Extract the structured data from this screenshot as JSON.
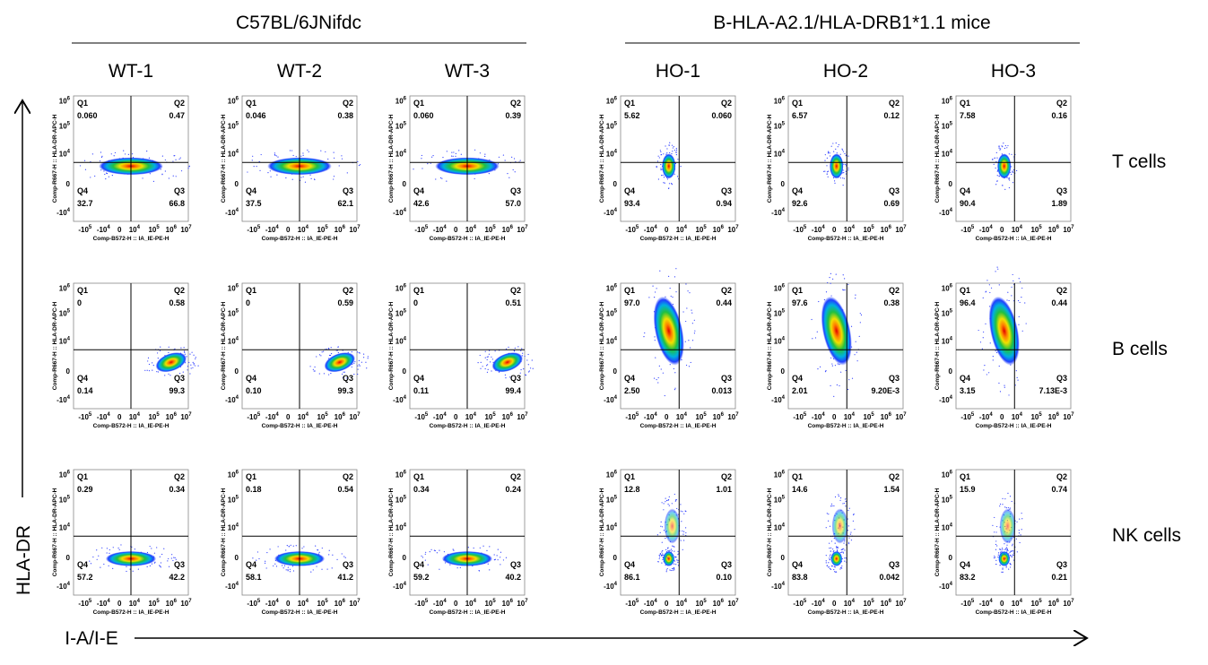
{
  "groups": [
    {
      "label": "C57BL/6JNifdc"
    },
    {
      "label": "B-HLA-A2.1/HLA-DRB1*1.1 mice"
    }
  ],
  "columns": [
    "WT-1",
    "WT-2",
    "WT-3",
    "HO-1",
    "HO-2",
    "HO-3"
  ],
  "rows": [
    "T cells",
    "B cells",
    "NK cells"
  ],
  "y_axis_title": "HLA-DR",
  "x_axis_title": "I-A/I-E",
  "plot_x_label": "Comp-B572-H :: IA_IE-PE-H",
  "plot_y_label": "Comp-R667-H :: HLA-DR-APC-H",
  "quadrant_names": [
    "Q1",
    "Q2",
    "Q3",
    "Q4"
  ],
  "x_ticks": [
    {
      "base": "-10",
      "exp": "5"
    },
    {
      "base": "-10",
      "exp": "4"
    },
    {
      "base": "0"
    },
    {
      "base": "10",
      "exp": "4"
    },
    {
      "base": "10",
      "exp": "5"
    },
    {
      "base": "10",
      "exp": "6"
    },
    {
      "base": "10",
      "exp": "7"
    }
  ],
  "y_ticks": [
    {
      "base": "10",
      "exp": "6"
    },
    {
      "base": "10",
      "exp": "5"
    },
    {
      "base": "10",
      "exp": "4"
    },
    {
      "base": "0"
    },
    {
      "base": "-10",
      "exp": "4"
    }
  ],
  "panels": [
    [
      [
        "0.060",
        "0.47",
        "66.8",
        "32.7"
      ],
      [
        "0.046",
        "0.38",
        "62.1",
        "37.5"
      ],
      [
        "0.060",
        "0.39",
        "57.0",
        "42.6"
      ],
      [
        "5.62",
        "0.060",
        "0.94",
        "93.4"
      ],
      [
        "6.57",
        "0.12",
        "0.69",
        "92.6"
      ],
      [
        "7.58",
        "0.16",
        "1.89",
        "90.4"
      ]
    ],
    [
      [
        "0",
        "0.58",
        "99.3",
        "0.14"
      ],
      [
        "0",
        "0.59",
        "99.3",
        "0.10"
      ],
      [
        "0",
        "0.51",
        "99.4",
        "0.11"
      ],
      [
        "97.0",
        "0.44",
        "0.013",
        "2.50"
      ],
      [
        "97.6",
        "0.38",
        "9.20E-3",
        "2.01"
      ],
      [
        "96.4",
        "0.44",
        "7.13E-3",
        "3.15"
      ]
    ],
    [
      [
        "0.29",
        "0.34",
        "42.2",
        "57.2"
      ],
      [
        "0.18",
        "0.54",
        "41.2",
        "58.1"
      ],
      [
        "0.34",
        "0.24",
        "40.2",
        "59.2"
      ],
      [
        "12.8",
        "1.01",
        "0.10",
        "86.1"
      ],
      [
        "14.6",
        "1.54",
        "0.042",
        "83.8"
      ],
      [
        "15.9",
        "0.74",
        "0.21",
        "83.2"
      ]
    ]
  ]
}
